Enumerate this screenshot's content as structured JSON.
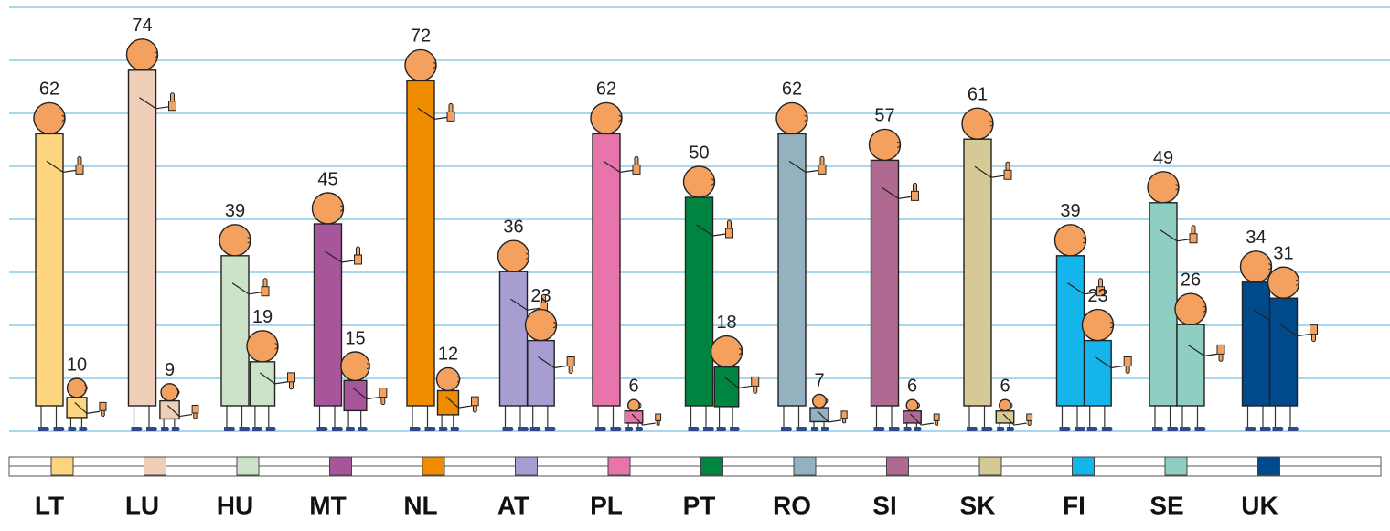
{
  "chart_data": {
    "type": "pictogram",
    "categories": [
      "LT",
      "LU",
      "HU",
      "MT",
      "NL",
      "AT",
      "PL",
      "PT",
      "RO",
      "SI",
      "SK",
      "FI",
      "SE",
      "UK"
    ],
    "colors": [
      "#fdd57e",
      "#efcfb8",
      "#cde3c9",
      "#a8569b",
      "#f08c00",
      "#a89dd0",
      "#e774ab",
      "#008540",
      "#94b1bf",
      "#b06a92",
      "#d5c996",
      "#13b5ea",
      "#8fcfc2",
      "#00498a"
    ],
    "series": [
      {
        "values": [
          62,
          74,
          39,
          45,
          72,
          36,
          62,
          50,
          62,
          57,
          61,
          39,
          49,
          34
        ]
      },
      {
        "values": [
          10,
          9,
          19,
          15,
          12,
          23,
          6,
          18,
          7,
          6,
          6,
          23,
          26,
          31
        ]
      }
    ],
    "ylim": [
      0,
      80
    ],
    "yticks": [
      0,
      10,
      20,
      30,
      40,
      50,
      60,
      70,
      80
    ],
    "grid": true
  }
}
